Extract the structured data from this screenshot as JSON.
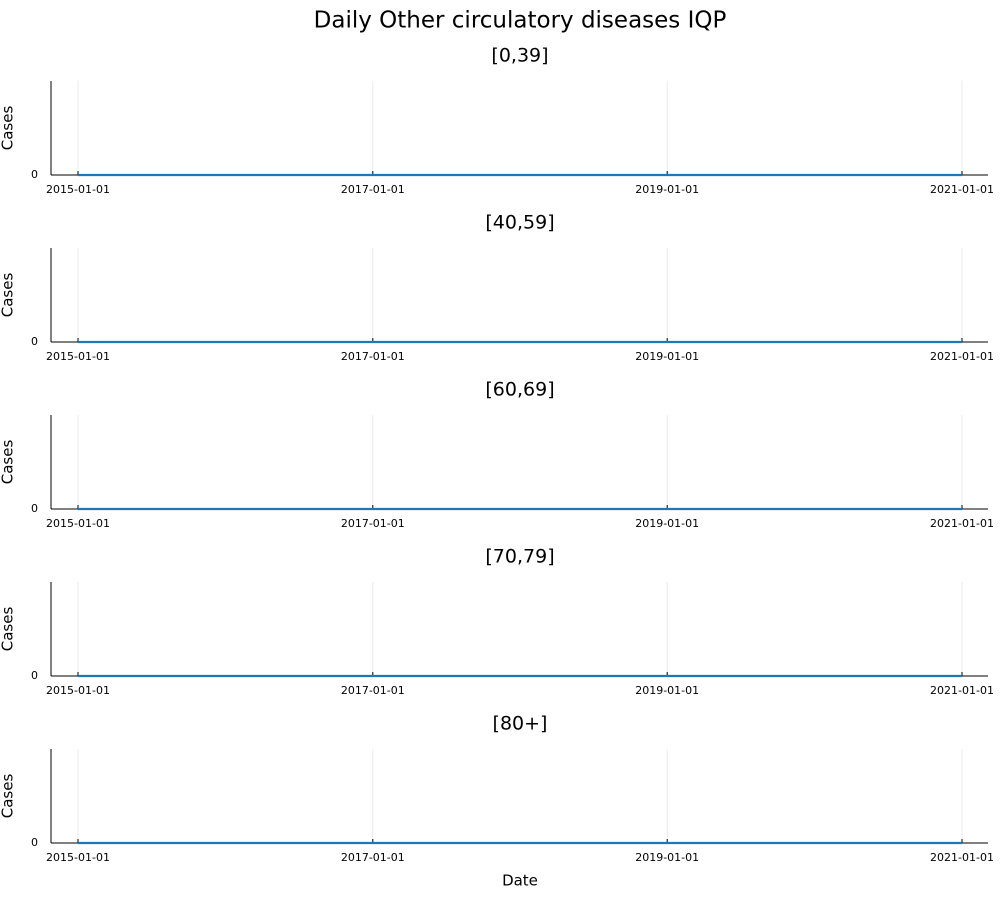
{
  "chart_data": {
    "type": "line",
    "title": "Daily Other circulatory diseases IQP",
    "xlabel": "Date",
    "colors": {
      "series": "#1f77b4",
      "axis": "#000000",
      "grid": "#ebebeb"
    },
    "grid": true,
    "legend": "none",
    "xlim": [
      "2015-01-01",
      "2021-01-01"
    ],
    "xticks": [
      "2015-01-01",
      "2017-01-01",
      "2019-01-01",
      "2021-01-01"
    ],
    "panels": [
      {
        "title": "[0,39]",
        "ylabel": "Cases",
        "yticks": [
          "0"
        ],
        "ylim": [
          0,
          1
        ],
        "series": [
          {
            "x": [
              "2015-01-01",
              "2021-01-01"
            ],
            "y": [
              0,
              0
            ]
          }
        ]
      },
      {
        "title": "[40,59]",
        "ylabel": "Cases",
        "yticks": [
          "0"
        ],
        "ylim": [
          0,
          1
        ],
        "series": [
          {
            "x": [
              "2015-01-01",
              "2021-01-01"
            ],
            "y": [
              0,
              0
            ]
          }
        ]
      },
      {
        "title": "[60,69]",
        "ylabel": "Cases",
        "yticks": [
          "0"
        ],
        "ylim": [
          0,
          1
        ],
        "series": [
          {
            "x": [
              "2015-01-01",
              "2021-01-01"
            ],
            "y": [
              0,
              0
            ]
          }
        ]
      },
      {
        "title": "[70,79]",
        "ylabel": "Cases",
        "yticks": [
          "0"
        ],
        "ylim": [
          0,
          1
        ],
        "series": [
          {
            "x": [
              "2015-01-01",
              "2021-01-01"
            ],
            "y": [
              0,
              0
            ]
          }
        ]
      },
      {
        "title": "[80+]",
        "ylabel": "Cases",
        "yticks": [
          "0"
        ],
        "ylim": [
          0,
          1
        ],
        "series": [
          {
            "x": [
              "2015-01-01",
              "2021-01-01"
            ],
            "y": [
              0,
              0
            ]
          }
        ]
      }
    ]
  }
}
